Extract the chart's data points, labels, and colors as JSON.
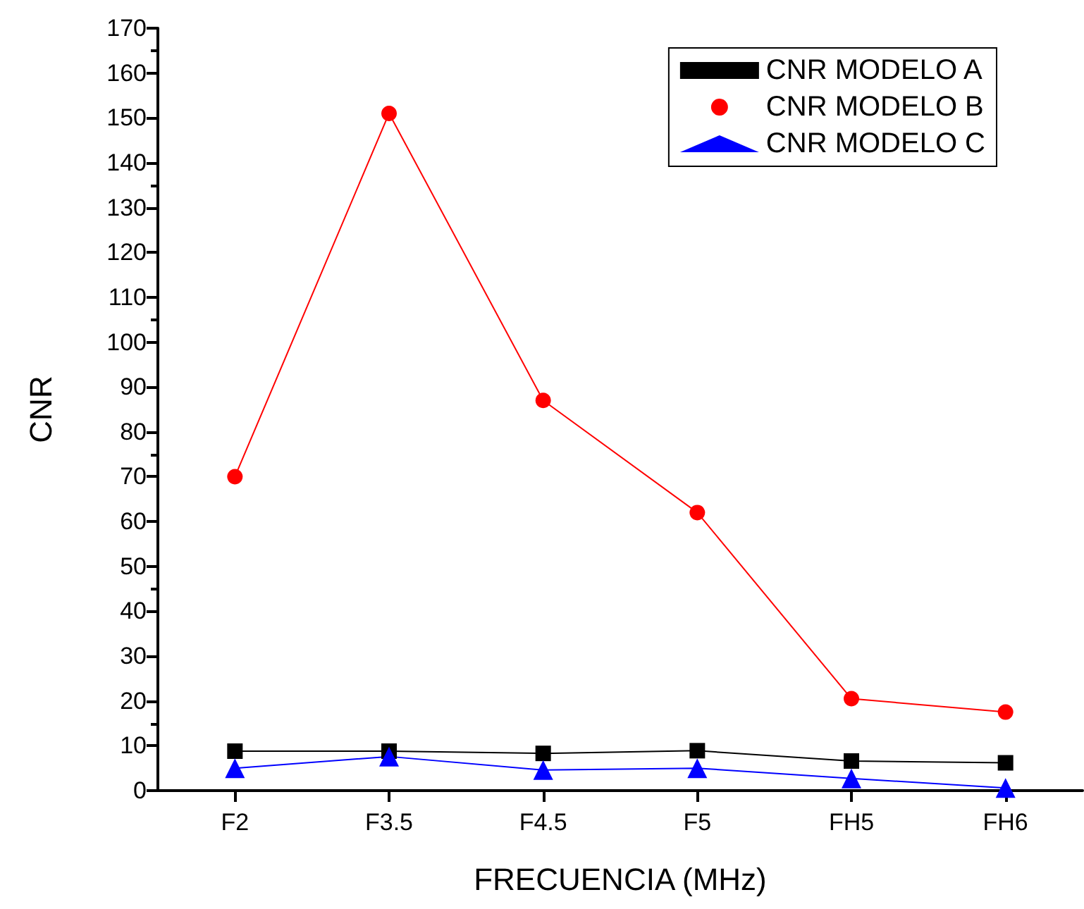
{
  "chart_data": {
    "type": "line",
    "xlabel": "FRECUENCIA (MHz)",
    "ylabel": "CNR",
    "categories": [
      "F2",
      "F3.5",
      "F4.5",
      "F5",
      "FH5",
      "FH6"
    ],
    "series": [
      {
        "name": "CNR MODELO A",
        "color": "#000000",
        "marker": "square",
        "values": [
          8.8,
          8.8,
          8.3,
          8.9,
          6.6,
          6.2
        ]
      },
      {
        "name": "CNR MODELO B",
        "color": "#ff0000",
        "marker": "circle",
        "values": [
          70,
          151,
          87,
          62,
          20.5,
          17.5
        ]
      },
      {
        "name": "CNR MODELO C",
        "color": "#0000ff",
        "marker": "triangle",
        "values": [
          5,
          7.6,
          4.6,
          5,
          2.7,
          0.6
        ]
      }
    ],
    "ylim": [
      0,
      170
    ],
    "yticks": [
      0,
      10,
      20,
      30,
      40,
      50,
      60,
      70,
      80,
      90,
      100,
      110,
      120,
      130,
      140,
      150,
      160,
      170
    ],
    "grid": false,
    "legend": "top right",
    "line_style": "solid"
  }
}
